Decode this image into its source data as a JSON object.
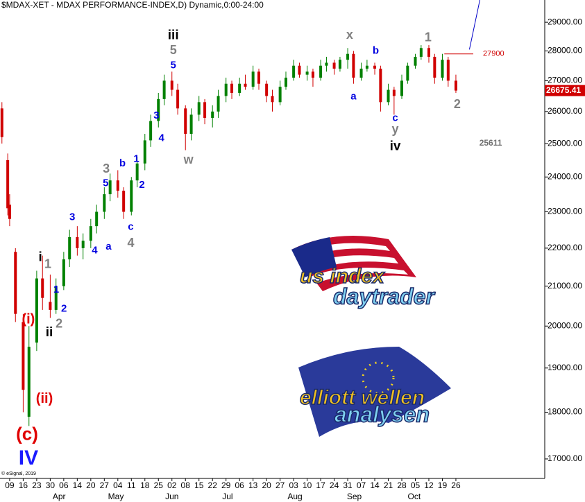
{
  "chart_data": {
    "type": "candlestick",
    "title": "$MDAX-XET - MDAX PERFORMANCE-INDEX,D) Dynamic,0:00-24:00",
    "log_y": true,
    "up_color": "#008000",
    "down_color": "#d00000",
    "xlim": [
      -5,
      277
    ],
    "ylim": [
      16600,
      29800
    ],
    "xticks": [
      {
        "value": 0,
        "label": "09"
      },
      {
        "value": 7,
        "label": "16"
      },
      {
        "value": 14,
        "label": "23"
      },
      {
        "value": 21,
        "label": "30"
      },
      {
        "value": 28,
        "label": "06"
      },
      {
        "value": 35,
        "label": "14"
      },
      {
        "value": 42,
        "label": "20"
      },
      {
        "value": 49,
        "label": "27"
      },
      {
        "value": 56,
        "label": "04"
      },
      {
        "value": 63,
        "label": "11"
      },
      {
        "value": 70,
        "label": "18"
      },
      {
        "value": 77,
        "label": "25"
      },
      {
        "value": 84,
        "label": "02"
      },
      {
        "value": 91,
        "label": "08"
      },
      {
        "value": 98,
        "label": "15"
      },
      {
        "value": 105,
        "label": "22"
      },
      {
        "value": 112,
        "label": "29"
      },
      {
        "value": 119,
        "label": "06"
      },
      {
        "value": 126,
        "label": "13"
      },
      {
        "value": 133,
        "label": "20"
      },
      {
        "value": 140,
        "label": "27"
      },
      {
        "value": 147,
        "label": "03"
      },
      {
        "value": 154,
        "label": "10"
      },
      {
        "value": 161,
        "label": "17"
      },
      {
        "value": 168,
        "label": "24"
      },
      {
        "value": 175,
        "label": "31"
      },
      {
        "value": 182,
        "label": "07"
      },
      {
        "value": 189,
        "label": "14"
      },
      {
        "value": 196,
        "label": "21"
      },
      {
        "value": 203,
        "label": "28"
      },
      {
        "value": 210,
        "label": "05"
      },
      {
        "value": 217,
        "label": "12"
      },
      {
        "value": 224,
        "label": "19"
      },
      {
        "value": 231,
        "label": "26"
      }
    ],
    "month_ticks": [
      {
        "value": 25.6,
        "label": "Apr"
      },
      {
        "value": 55,
        "label": "May"
      },
      {
        "value": 84,
        "label": "Jun"
      },
      {
        "value": 112.8,
        "label": "Jul"
      },
      {
        "value": 147.7,
        "label": "Aug"
      },
      {
        "value": 178.4,
        "label": "Sep"
      },
      {
        "value": 209.4,
        "label": "Oct"
      }
    ],
    "yticks": [
      {
        "value": 17000,
        "label": "17000.00"
      },
      {
        "value": 18000,
        "label": "18000.00"
      },
      {
        "value": 19000,
        "label": "19000.00"
      },
      {
        "value": 20000,
        "label": "20000.00"
      },
      {
        "value": 21000,
        "label": "21000.00"
      },
      {
        "value": 22000,
        "label": "22000.00"
      },
      {
        "value": 23000,
        "label": "23000.00"
      },
      {
        "value": 24000,
        "label": "24000.00"
      },
      {
        "value": 25000,
        "label": "25000.00"
      },
      {
        "value": 26000,
        "label": "26000.00"
      },
      {
        "value": 27000,
        "label": "27000.00"
      },
      {
        "value": 28000,
        "label": "28000.00"
      },
      {
        "value": 29000,
        "label": "29000.00"
      }
    ],
    "x": [
      -4,
      -1,
      0,
      3,
      7,
      10,
      14,
      17,
      21,
      24,
      28,
      31,
      35,
      38,
      42,
      45,
      49,
      52,
      56,
      59,
      63,
      66,
      70,
      73,
      77,
      80,
      84,
      87,
      91,
      94,
      98,
      101,
      105,
      108,
      112,
      115,
      119,
      122,
      126,
      129,
      133,
      136,
      140,
      143,
      147,
      150,
      154,
      157,
      161,
      164,
      168,
      171,
      175,
      178,
      182,
      185,
      189,
      192,
      196,
      199,
      203,
      206,
      210,
      213,
      217,
      220,
      224,
      227,
      231
    ],
    "open": [
      26100,
      24500,
      23200,
      21900,
      20100,
      17900,
      19600,
      21200,
      20600,
      20400,
      21000,
      21700,
      22300,
      22000,
      22200,
      22600,
      23000,
      23500,
      23900,
      23600,
      23000,
      23900,
      24400,
      25100,
      25700,
      26400,
      27000,
      26700,
      26100,
      25300,
      25900,
      26300,
      25800,
      26000,
      26500,
      26900,
      26600,
      26900,
      26800,
      27300,
      26900,
      26500,
      26300,
      26800,
      27100,
      27500,
      27200,
      27300,
      27100,
      27500,
      27600,
      27400,
      27700,
      27900,
      27100,
      27400,
      27500,
      27400,
      26300,
      26700,
      26500,
      27000,
      27500,
      27800,
      28100,
      27800,
      27100,
      27700,
      27000
    ],
    "high": [
      26300,
      24700,
      23500,
      22000,
      20300,
      20000,
      21400,
      21800,
      21300,
      21200,
      21900,
      22500,
      22600,
      22400,
      22800,
      23200,
      23700,
      24100,
      24200,
      23700,
      24000,
      24600,
      25300,
      25900,
      26600,
      27200,
      27300,
      26900,
      26200,
      26100,
      26500,
      26400,
      26200,
      26700,
      27100,
      27000,
      27100,
      27200,
      27500,
      27400,
      27000,
      26700,
      27000,
      27300,
      27700,
      27600,
      27500,
      27400,
      27700,
      27800,
      27700,
      27800,
      28100,
      28000,
      27600,
      27700,
      27600,
      27500,
      26900,
      26800,
      27200,
      27600,
      27900,
      28200,
      28200,
      27900,
      27900,
      27800,
      27200
    ],
    "low": [
      25000,
      22900,
      22600,
      20100,
      18000,
      17700,
      19400,
      20400,
      20200,
      20300,
      20900,
      21500,
      21800,
      21700,
      22000,
      22400,
      22800,
      23300,
      23400,
      22800,
      22900,
      23700,
      24200,
      24900,
      25500,
      26200,
      26500,
      25900,
      24800,
      25100,
      25700,
      25600,
      25500,
      25800,
      26300,
      26400,
      26500,
      26700,
      26700,
      26700,
      26300,
      26000,
      26200,
      26700,
      27000,
      27100,
      27000,
      26800,
      27000,
      27300,
      27200,
      27300,
      27400,
      26900,
      27000,
      27300,
      27200,
      26000,
      26200,
      25900,
      26400,
      26900,
      27400,
      27700,
      27600,
      26900,
      27000,
      26800,
      26600
    ],
    "close": [
      25200,
      23100,
      22800,
      20300,
      18500,
      19500,
      21200,
      20700,
      20400,
      21000,
      21700,
      22300,
      22000,
      22200,
      22600,
      23000,
      23500,
      23900,
      23600,
      23000,
      23900,
      24400,
      25100,
      25700,
      26400,
      27000,
      26700,
      26100,
      25300,
      25900,
      26300,
      25800,
      26000,
      26500,
      26900,
      26600,
      26900,
      26800,
      27300,
      26900,
      26500,
      26300,
      26800,
      27100,
      27500,
      27200,
      27300,
      27100,
      27500,
      27600,
      27400,
      27700,
      27900,
      27100,
      27400,
      27500,
      27400,
      26300,
      26700,
      26500,
      27000,
      27500,
      27800,
      28100,
      27800,
      27100,
      27700,
      27000,
      26675.41
    ],
    "resistance": {
      "value": 27900,
      "x": [
        225,
        240
      ],
      "color": "#d00000"
    },
    "forecast_line": {
      "x": [
        238,
        244
      ],
      "y": [
        28050,
        30000
      ],
      "color": "#0000c8"
    },
    "annotations": [
      {
        "text": "iii",
        "x": 84.7,
        "y": 28530,
        "color": "#000000",
        "degree": "intermediate"
      },
      {
        "text": "5",
        "x": 84.7,
        "y": 28000,
        "color": "#808080",
        "degree": "minor"
      },
      {
        "text": "5",
        "x": 84.7,
        "y": 27510,
        "color": "#0000e0",
        "degree": "minute"
      },
      {
        "text": "x",
        "x": 176,
        "y": 28530,
        "color": "#808080",
        "degree": "minor"
      },
      {
        "text": "1",
        "x": 216.6,
        "y": 28450,
        "color": "#808080",
        "degree": "minor"
      },
      {
        "text": "b",
        "x": 189.5,
        "y": 28000,
        "color": "#0000e0",
        "degree": "minute"
      },
      {
        "text": "a",
        "x": 178,
        "y": 26470,
        "color": "#0000e0",
        "degree": "minute"
      },
      {
        "text": "2",
        "x": 231.7,
        "y": 26210,
        "color": "#808080",
        "degree": "minor"
      },
      {
        "text": "c",
        "x": 199.6,
        "y": 25790,
        "color": "#0000e0",
        "degree": "minute"
      },
      {
        "text": "y",
        "x": 199.6,
        "y": 25420,
        "color": "#808080",
        "degree": "minor"
      },
      {
        "text": "iv",
        "x": 199.6,
        "y": 24910,
        "color": "#000000",
        "degree": "intermediate"
      },
      {
        "text": "w",
        "x": 92.6,
        "y": 24490,
        "color": "#808080",
        "degree": "minor"
      },
      {
        "text": "3",
        "x": 76,
        "y": 25860,
        "color": "#0000e0",
        "degree": "minute"
      },
      {
        "text": "4",
        "x": 78.6,
        "y": 25160,
        "color": "#0000e0",
        "degree": "minute"
      },
      {
        "text": "1",
        "x": 65.6,
        "y": 24530,
        "color": "#0000e0",
        "degree": "minute"
      },
      {
        "text": "2",
        "x": 68.5,
        "y": 23760,
        "color": "#0000e0",
        "degree": "minute"
      },
      {
        "text": "3",
        "x": 50,
        "y": 24220,
        "color": "#808080",
        "degree": "minor"
      },
      {
        "text": "5",
        "x": 49.7,
        "y": 23810,
        "color": "#0000e0",
        "degree": "minute"
      },
      {
        "text": "b",
        "x": 58.4,
        "y": 24390,
        "color": "#0000e0",
        "degree": "minute"
      },
      {
        "text": "c",
        "x": 62.7,
        "y": 22570,
        "color": "#0000e0",
        "degree": "minute"
      },
      {
        "text": "4",
        "x": 62.7,
        "y": 22120,
        "color": "#808080",
        "degree": "minor"
      },
      {
        "text": "3",
        "x": 32.4,
        "y": 22840,
        "color": "#0000e0",
        "degree": "minute"
      },
      {
        "text": "4",
        "x": 44,
        "y": 21930,
        "color": "#0000e0",
        "degree": "minute"
      },
      {
        "text": "a",
        "x": 51.2,
        "y": 22030,
        "color": "#0000e0",
        "degree": "minute"
      },
      {
        "text": "i",
        "x": 15.9,
        "y": 21750,
        "color": "#000000",
        "degree": "intermediate"
      },
      {
        "text": "1",
        "x": 19.8,
        "y": 21560,
        "color": "#808080",
        "degree": "minor"
      },
      {
        "text": "1",
        "x": 24.1,
        "y": 20910,
        "color": "#0000e0",
        "degree": "minute"
      },
      {
        "text": "2",
        "x": 28.1,
        "y": 20420,
        "color": "#0000e0",
        "degree": "minute"
      },
      {
        "text": "2",
        "x": 25.6,
        "y": 20040,
        "color": "#808080",
        "degree": "minor"
      },
      {
        "text": "ii",
        "x": 20.5,
        "y": 19840,
        "color": "#000000",
        "degree": "intermediate"
      },
      {
        "text": "(i)",
        "x": 9.7,
        "y": 20150,
        "color": "#e00000",
        "degree": "primary-wave"
      },
      {
        "text": "(ii)",
        "x": 18,
        "y": 18290,
        "color": "#e00000",
        "degree": "primary-wave"
      },
      {
        "text": "(c)",
        "x": 9,
        "y": 17500,
        "color": "#e00000",
        "degree": "primary"
      },
      {
        "text": "IV",
        "x": 9.7,
        "y": 17000,
        "color": "#1a1aff",
        "degree": "cycle"
      },
      {
        "text": "25611",
        "x": 249,
        "y": 25010,
        "color": "#707070",
        "degree": "note"
      }
    ],
    "copyright": "© eSignal, 2019",
    "logos": [
      {
        "lines": [
          "us index",
          "daytrader"
        ]
      },
      {
        "lines": [
          "elliott wellen",
          "analysen"
        ]
      }
    ]
  }
}
